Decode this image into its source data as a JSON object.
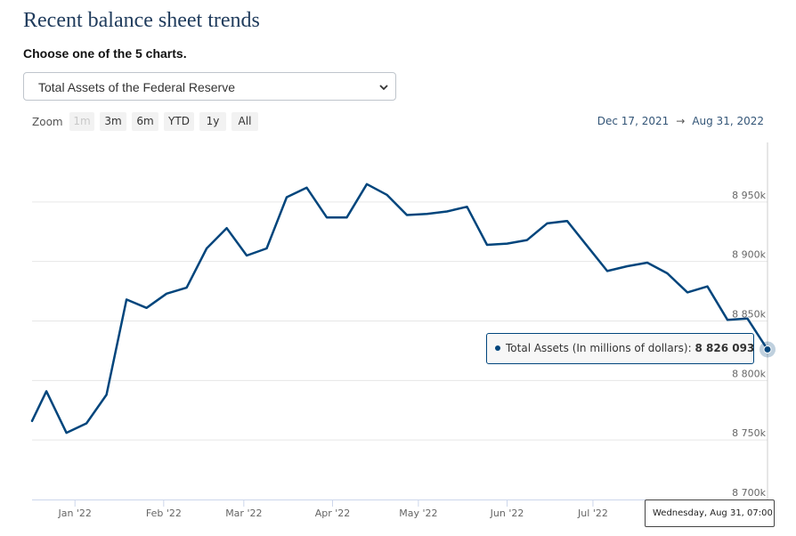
{
  "page": {
    "title": "Recent balance sheet trends",
    "chooser_label": "Choose one of the 5 charts.",
    "select": {
      "value": "Total Assets of the Federal Reserve"
    }
  },
  "zoom": {
    "label": "Zoom",
    "buttons": [
      "1m",
      "3m",
      "6m",
      "YTD",
      "1y",
      "All"
    ],
    "disabled": "1m"
  },
  "range": {
    "from": "Dec 17, 2021",
    "arrow": "→",
    "to": "Aug 31, 2022"
  },
  "tooltip": {
    "series_label": "Total Assets (In millions of dollars):",
    "value": "8 826 093"
  },
  "crosshair_label": "Wednesday, Aug 31, 07:00",
  "colors": {
    "series": "#00457c",
    "title": "#1f3b5c",
    "range_text": "#335577"
  },
  "icons": {
    "select": "chevron-down-icon"
  },
  "chart_data": {
    "type": "line",
    "series": [
      {
        "name": "Total Assets",
        "x": [
          "2021-12-17",
          "2021-12-22",
          "2021-12-29",
          "2022-01-05",
          "2022-01-12",
          "2022-01-19",
          "2022-01-26",
          "2022-02-02",
          "2022-02-09",
          "2022-02-16",
          "2022-02-23",
          "2022-03-02",
          "2022-03-09",
          "2022-03-16",
          "2022-03-23",
          "2022-03-30",
          "2022-04-06",
          "2022-04-13",
          "2022-04-20",
          "2022-04-27",
          "2022-05-04",
          "2022-05-11",
          "2022-05-18",
          "2022-05-25",
          "2022-06-01",
          "2022-06-08",
          "2022-06-15",
          "2022-06-22",
          "2022-06-29",
          "2022-07-06",
          "2022-07-13",
          "2022-07-20",
          "2022-07-27",
          "2022-08-03",
          "2022-08-10",
          "2022-08-17",
          "2022-08-24",
          "2022-08-31"
        ],
        "values": [
          8766000,
          8791000,
          8756000,
          8764000,
          8788000,
          8868000,
          8861000,
          8873000,
          8878000,
          8911000,
          8928000,
          8905000,
          8911000,
          8954000,
          8962000,
          8937000,
          8937000,
          8965000,
          8956000,
          8939000,
          8940000,
          8942000,
          8946000,
          8914000,
          8915000,
          8918000,
          8932000,
          8934000,
          8913000,
          8892000,
          8896000,
          8899000,
          8890000,
          8874000,
          8879000,
          8851000,
          8852000,
          8826093
        ]
      }
    ],
    "y_ticks": [
      "8 700k",
      "8 750k",
      "8 800k",
      "8 850k",
      "8 900k",
      "8 950k"
    ],
    "y_tick_values": [
      8700000,
      8750000,
      8800000,
      8850000,
      8900000,
      8950000
    ],
    "ylim": [
      8700000,
      9000000
    ],
    "x_ticks": [
      "Jan '22",
      "Feb '22",
      "Mar '22",
      "Apr '22",
      "May '22",
      "Jun '22",
      "Jul '22"
    ],
    "x_tick_dates": [
      "2022-01-01",
      "2022-02-01",
      "2022-03-01",
      "2022-04-01",
      "2022-05-01",
      "2022-06-01",
      "2022-07-01"
    ],
    "xlim": [
      "2021-12-17",
      "2022-08-31"
    ],
    "grid": "horizontal",
    "legend": "none"
  }
}
